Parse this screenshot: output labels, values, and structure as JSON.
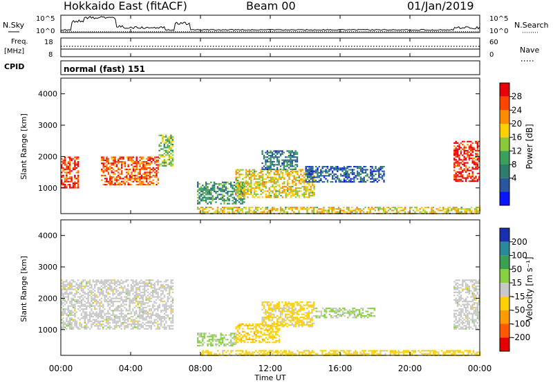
{
  "header": {
    "station": "Hokkaido East (fitACF)",
    "beam": "Beam 00",
    "date": "01/Jan/2019"
  },
  "params": {
    "nsky_label": "N.Sky",
    "nsearch_label": "N.Search",
    "nsky_ticks": [
      "10^5",
      "10^0"
    ],
    "nsearch_ticks": [
      "10^5",
      "10^0"
    ],
    "freq_label": "Freq.",
    "freq_unit": "[MHz]",
    "freq_ticks": [
      "18",
      "8"
    ],
    "nave_label": "Nave",
    "nave_ticks": [
      "60",
      "0"
    ],
    "cpid_label": "CPID",
    "cpid_value": "normal (fast) 151"
  },
  "x_ticks": [
    "00:00",
    "04:00",
    "08:00",
    "12:00",
    "16:00",
    "20:00",
    "00:00"
  ],
  "x_label": "Time UT",
  "colorbars": {
    "power": {
      "label": "Power [dB]",
      "ticks": [
        "28",
        "24",
        "20",
        "16",
        "12",
        "8",
        "4"
      ],
      "colors": [
        "#e8000b",
        "#ff4400",
        "#ff8c00",
        "#ffd000",
        "#88c83a",
        "#3aa05a",
        "#2e7d6b",
        "#2a56a0",
        "#0a14ff"
      ]
    },
    "velocity": {
      "label": "Velocity [m s⁻¹]",
      "ticks": [
        "200",
        "100",
        "50",
        "15",
        "-15",
        "-50",
        "-100",
        "-200"
      ],
      "colors": [
        "#1a2fb0",
        "#2a8a9a",
        "#3aa050",
        "#88d040",
        "#c8c8c8",
        "#ffd000",
        "#ff9a00",
        "#ff5a00",
        "#e60000"
      ]
    }
  },
  "chart_data": [
    {
      "type": "heatmap",
      "title": "Hokkaido East (fitACF) Beam 00 01/Jan/2019",
      "xlabel": "Time UT",
      "ylabel": "Slant Range [km]",
      "xlim": [
        0,
        24
      ],
      "ylim": [
        180,
        4500
      ],
      "y_ticks": [
        1000,
        2000,
        3000,
        4000
      ],
      "colorbar": "Power [dB]",
      "zlim": [
        0,
        30
      ],
      "regions": [
        {
          "t": [
            0.0,
            1.0
          ],
          "r": [
            1000,
            2000
          ],
          "value": 26
        },
        {
          "t": [
            2.3,
            5.6
          ],
          "r": [
            1100,
            2000
          ],
          "value": 24
        },
        {
          "t": [
            5.6,
            6.4
          ],
          "r": [
            1700,
            2700
          ],
          "value": 14
        },
        {
          "t": [
            7.8,
            10.5
          ],
          "r": [
            500,
            1200
          ],
          "value": 10
        },
        {
          "t": [
            10.0,
            14.5
          ],
          "r": [
            700,
            1600
          ],
          "value": 18
        },
        {
          "t": [
            11.5,
            13.5
          ],
          "r": [
            1600,
            2200
          ],
          "value": 8
        },
        {
          "t": [
            14.0,
            18.5
          ],
          "r": [
            1200,
            1700
          ],
          "value": 6
        },
        {
          "t": [
            22.5,
            24.0
          ],
          "r": [
            1200,
            2500
          ],
          "value": 27
        },
        {
          "t": [
            7.8,
            24.0
          ],
          "r": [
            180,
            400
          ],
          "value": 18
        }
      ]
    },
    {
      "type": "heatmap",
      "xlabel": "Time UT",
      "ylabel": "Slant Range [km]",
      "xlim": [
        0,
        24
      ],
      "ylim": [
        180,
        4500
      ],
      "y_ticks": [
        1000,
        2000,
        3000,
        4000
      ],
      "colorbar": "Velocity [m s⁻¹]",
      "zlim": [
        -250,
        250
      ],
      "regions": [
        {
          "t": [
            0.0,
            6.4
          ],
          "r": [
            1000,
            2600
          ],
          "value": 0
        },
        {
          "t": [
            7.8,
            10.0
          ],
          "r": [
            500,
            900
          ],
          "value": 40
        },
        {
          "t": [
            10.0,
            12.5
          ],
          "r": [
            600,
            1200
          ],
          "value": -60
        },
        {
          "t": [
            11.5,
            14.5
          ],
          "r": [
            1100,
            1900
          ],
          "value": -40
        },
        {
          "t": [
            14.5,
            18.0
          ],
          "r": [
            1400,
            1700
          ],
          "value": 30
        },
        {
          "t": [
            22.5,
            24.0
          ],
          "r": [
            1000,
            2600
          ],
          "value": 0
        },
        {
          "t": [
            8.0,
            24.0
          ],
          "r": [
            180,
            350
          ],
          "value": -50
        }
      ]
    }
  ]
}
